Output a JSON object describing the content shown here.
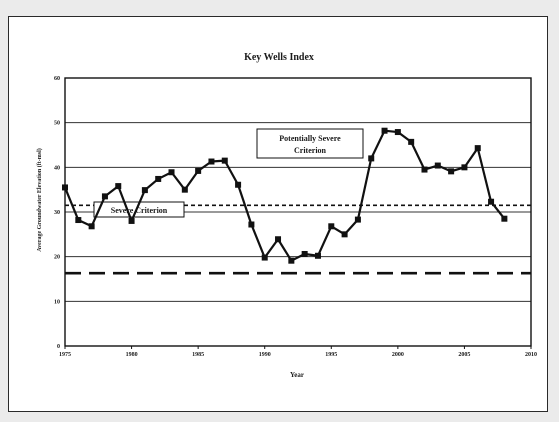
{
  "chart_data": {
    "type": "line",
    "title": "Key Wells Index",
    "xlabel": "Year",
    "ylabel": "Average Groundwater Elevation (ft-msl)",
    "xlim": [
      1975,
      2010
    ],
    "ylim": [
      0,
      60
    ],
    "xticks": [
      1975,
      1980,
      1985,
      1990,
      1995,
      2000,
      2005,
      2010
    ],
    "yticks": [
      0,
      10,
      20,
      30,
      40,
      50,
      60
    ],
    "grid": true,
    "x": [
      1975,
      1976,
      1977,
      1978,
      1979,
      1980,
      1981,
      1982,
      1983,
      1984,
      1985,
      1986,
      1987,
      1988,
      1989,
      1990,
      1991,
      1992,
      1993,
      1994,
      1995,
      1996,
      1997,
      1998,
      1999,
      2000,
      2001,
      2002,
      2003,
      2004,
      2005,
      2006,
      2007,
      2008
    ],
    "series": [
      {
        "values": [
          35.5,
          28.2,
          26.8,
          33.5,
          35.8,
          28.0,
          34.9,
          37.4,
          38.9,
          35.0,
          39.2,
          41.3,
          41.5,
          36.1,
          27.2,
          19.8,
          23.9,
          19.1,
          20.6,
          20.2,
          26.8,
          25.0,
          28.3,
          42.0,
          48.2,
          47.9,
          45.7,
          39.5,
          40.4,
          39.1,
          40.0,
          44.3,
          32.3,
          28.5
        ],
        "color": "#111111"
      }
    ],
    "reference_lines": [
      {
        "label": "Potentially Severe Criterion",
        "value": 31.5,
        "style": "short-dash"
      },
      {
        "label": "Severe Criterion",
        "value": 16.3,
        "style": "long-dash"
      }
    ]
  }
}
